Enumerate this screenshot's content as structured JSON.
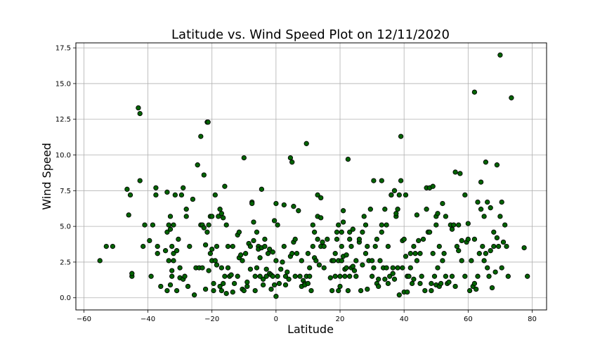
{
  "chart_data": {
    "type": "scatter",
    "title": "Latitude vs. Wind Speed Plot on 12/11/2020",
    "xlabel": "Latitude",
    "ylabel": "Wind Speed",
    "xlim": [
      -62.5,
      84.5
    ],
    "ylim": [
      -0.85,
      17.85
    ],
    "xticks": [
      -60,
      -40,
      -20,
      0,
      20,
      40,
      60,
      80
    ],
    "yticks": [
      0.0,
      2.5,
      5.0,
      7.5,
      10.0,
      12.5,
      15.0,
      17.5
    ],
    "xtick_labels": [
      "−60",
      "−40",
      "−20",
      "0",
      "20",
      "40",
      "60",
      "80"
    ],
    "ytick_labels": [
      "0.0",
      "2.5",
      "5.0",
      "7.5",
      "10.0",
      "12.5",
      "15.0",
      "17.5"
    ],
    "grid": true,
    "marker_color": "#006400",
    "marker_edge": "#000000",
    "points": [
      [
        -55,
        2.6
      ],
      [
        -53,
        3.6
      ],
      [
        -51,
        3.6
      ],
      [
        -46.5,
        7.6
      ],
      [
        -46,
        5.8
      ],
      [
        -45.5,
        7.2
      ],
      [
        -45,
        1.5
      ],
      [
        -45,
        1.7
      ],
      [
        -43,
        13.3
      ],
      [
        -42.5,
        12.9
      ],
      [
        -42.5,
        8.2
      ],
      [
        -41.5,
        3.6
      ],
      [
        -41,
        5.1
      ],
      [
        -39.5,
        4.0
      ],
      [
        -39,
        1.5
      ],
      [
        -38.5,
        5.1
      ],
      [
        -37.5,
        7.7
      ],
      [
        -37.5,
        7.2
      ],
      [
        -37,
        3.6
      ],
      [
        -37,
        3.1
      ],
      [
        -36,
        0.8
      ],
      [
        -34.5,
        3.3
      ],
      [
        -34,
        7.4
      ],
      [
        -34,
        4.6
      ],
      [
        -34,
        0.5
      ],
      [
        -33.5,
        5.1
      ],
      [
        -33.5,
        2.6
      ],
      [
        -33,
        5.7
      ],
      [
        -33,
        4.8
      ],
      [
        -33,
        0.9
      ],
      [
        -32.5,
        3.6
      ],
      [
        -32.5,
        1.5
      ],
      [
        -32.5,
        1.9
      ],
      [
        -32,
        5.1
      ],
      [
        -32,
        3.1
      ],
      [
        -32,
        2.6
      ],
      [
        -31.5,
        7.2
      ],
      [
        -31,
        3.3
      ],
      [
        -31,
        0.5
      ],
      [
        -30.5,
        4.1
      ],
      [
        -30,
        2.1
      ],
      [
        -30,
        1.4
      ],
      [
        -29.5,
        7.2
      ],
      [
        -29,
        7.7
      ],
      [
        -29,
        1.3
      ],
      [
        -28.5,
        1.5
      ],
      [
        -28,
        5.7
      ],
      [
        -28,
        6.2
      ],
      [
        -27.5,
        0.8
      ],
      [
        -27,
        3.6
      ],
      [
        -26,
        6.9
      ],
      [
        -25.5,
        0.2
      ],
      [
        -25,
        2.1
      ],
      [
        -24.5,
        9.3
      ],
      [
        -24,
        2.1
      ],
      [
        -23.5,
        11.3
      ],
      [
        -23.5,
        5.1
      ],
      [
        -23,
        5.1
      ],
      [
        -23,
        2.1
      ],
      [
        -22.5,
        4.9
      ],
      [
        -22.5,
        8.6
      ],
      [
        -22,
        0.6
      ],
      [
        -22,
        3.7
      ],
      [
        -21.5,
        4.6
      ],
      [
        -21.5,
        12.3
      ],
      [
        -21.2,
        12.3
      ],
      [
        -21,
        1.9
      ],
      [
        -21,
        5.1
      ],
      [
        -20.5,
        5.7
      ],
      [
        -20.5,
        3.1
      ],
      [
        -20,
        2.6
      ],
      [
        -20,
        5.7
      ],
      [
        -20,
        3.4
      ],
      [
        -19.5,
        0.5
      ],
      [
        -19.5,
        1.0
      ],
      [
        -19,
        2.6
      ],
      [
        -19,
        7.2
      ],
      [
        -18.5,
        3.6
      ],
      [
        -18.5,
        2.3
      ],
      [
        -18,
        5.7
      ],
      [
        -17.5,
        6.2
      ],
      [
        -17.5,
        0.8
      ],
      [
        -17,
        5.9
      ],
      [
        -17,
        0.5
      ],
      [
        -17,
        2.1
      ],
      [
        -16.5,
        5.6
      ],
      [
        -16.5,
        1.0
      ],
      [
        -16,
        7.8
      ],
      [
        -16,
        1.5
      ],
      [
        -15.5,
        5.1
      ],
      [
        -15.5,
        0.3
      ],
      [
        -15,
        3.6
      ],
      [
        -15,
        2.1
      ],
      [
        -14.5,
        1.5
      ],
      [
        -14,
        1.6
      ],
      [
        -13.5,
        3.6
      ],
      [
        -13.5,
        0.4
      ],
      [
        -13,
        1.0
      ],
      [
        -12,
        4.4
      ],
      [
        -12,
        1.5
      ],
      [
        -11.5,
        2.8
      ],
      [
        -11.5,
        4.6
      ],
      [
        -11,
        3.0
      ],
      [
        -10.5,
        0.6
      ],
      [
        -10.5,
        2.6
      ],
      [
        -10,
        9.8
      ],
      [
        -10,
        0.5
      ],
      [
        -9.5,
        3.1
      ],
      [
        -9,
        0.8
      ],
      [
        -9,
        1.1
      ],
      [
        -8.5,
        3.8
      ],
      [
        -8,
        3.6
      ],
      [
        -8,
        2.0
      ],
      [
        -7.5,
        6.7
      ],
      [
        -7.5,
        6.6
      ],
      [
        -7,
        5.3
      ],
      [
        -7,
        4.0
      ],
      [
        -6.5,
        0.5
      ],
      [
        -6.5,
        1.5
      ],
      [
        -6,
        4.6
      ],
      [
        -6,
        2.1
      ],
      [
        -5.5,
        3.6
      ],
      [
        -5.5,
        3.4
      ],
      [
        -5,
        1.5
      ],
      [
        -5,
        2.8
      ],
      [
        -4.5,
        7.6
      ],
      [
        -4.5,
        3.5
      ],
      [
        -4,
        1.3
      ],
      [
        -4,
        0.9
      ],
      [
        -3.5,
        3.6
      ],
      [
        -3.5,
        4.1
      ],
      [
        -3,
        1.5
      ],
      [
        -3,
        2.0
      ],
      [
        -2.5,
        3.1
      ],
      [
        -2,
        3.4
      ],
      [
        -2,
        1.7
      ],
      [
        -1.5,
        1.6
      ],
      [
        -1.5,
        0.6
      ],
      [
        -1,
        1.5
      ],
      [
        -1,
        3.2
      ],
      [
        -0.5,
        0.9
      ],
      [
        -0.5,
        5.4
      ],
      [
        0,
        0.1
      ],
      [
        0,
        6.6
      ],
      [
        0,
        2.6
      ],
      [
        0.5,
        1.5
      ],
      [
        0.5,
        5.1
      ],
      [
        1,
        1.0
      ],
      [
        1.5,
        2.0
      ],
      [
        2,
        2.5
      ],
      [
        2.5,
        6.5
      ],
      [
        2.5,
        3.6
      ],
      [
        3,
        0.9
      ],
      [
        3,
        1.5
      ],
      [
        3.5,
        1.8
      ],
      [
        4,
        1.3
      ],
      [
        4.5,
        9.8
      ],
      [
        4.5,
        2.9
      ],
      [
        5,
        3.1
      ],
      [
        5,
        9.5
      ],
      [
        5.5,
        3.9
      ],
      [
        5.5,
        6.4
      ],
      [
        6,
        4.1
      ],
      [
        6,
        1.5
      ],
      [
        6.5,
        3.1
      ],
      [
        7,
        6.1
      ],
      [
        7.5,
        1.5
      ],
      [
        8,
        0.8
      ],
      [
        8,
        2.6
      ],
      [
        8.5,
        1.2
      ],
      [
        9,
        1.0
      ],
      [
        9,
        0.9
      ],
      [
        9.5,
        10.8
      ],
      [
        9.5,
        1.5
      ],
      [
        10,
        3.1
      ],
      [
        10,
        1.0
      ],
      [
        10.5,
        2.1
      ],
      [
        10.5,
        1.5
      ],
      [
        11,
        0.5
      ],
      [
        11.5,
        5.1
      ],
      [
        11.5,
        3.6
      ],
      [
        12,
        2.8
      ],
      [
        12,
        4.6
      ],
      [
        12.5,
        2.6
      ],
      [
        13,
        4.1
      ],
      [
        13,
        5.7
      ],
      [
        13,
        7.2
      ],
      [
        13.5,
        2.3
      ],
      [
        14,
        5.6
      ],
      [
        14,
        3.6
      ],
      [
        14,
        7.0
      ],
      [
        14.5,
        3.9
      ],
      [
        15,
        3.6
      ],
      [
        15,
        2.1
      ],
      [
        16,
        4.1
      ],
      [
        17,
        1.4
      ],
      [
        17.5,
        2.6
      ],
      [
        17.5,
        0.5
      ],
      [
        18,
        2.6
      ],
      [
        18.5,
        1.5
      ],
      [
        18.5,
        3.1
      ],
      [
        19,
        4.1
      ],
      [
        19,
        4.6
      ],
      [
        19.5,
        5.1
      ],
      [
        19.5,
        2.6
      ],
      [
        19.5,
        0.5
      ],
      [
        20,
        1.5
      ],
      [
        20,
        0.8
      ],
      [
        20.5,
        2.6
      ],
      [
        20.5,
        4.6
      ],
      [
        20.5,
        3.6
      ],
      [
        21,
        6.1
      ],
      [
        21,
        5.3
      ],
      [
        21,
        2.9
      ],
      [
        21.5,
        2.0
      ],
      [
        21.5,
        1.5
      ],
      [
        22,
        3.0
      ],
      [
        22,
        2.1
      ],
      [
        22.5,
        9.7
      ],
      [
        22.5,
        0.5
      ],
      [
        23,
        4.1
      ],
      [
        23,
        4.6
      ],
      [
        23,
        1.5
      ],
      [
        23.5,
        3.6
      ],
      [
        23.5,
        2.1
      ],
      [
        24,
        4.8
      ],
      [
        24,
        2.2
      ],
      [
        24.5,
        1.9
      ],
      [
        25,
        1.5
      ],
      [
        25,
        2.6
      ],
      [
        26,
        3.9
      ],
      [
        26,
        4.1
      ],
      [
        26.5,
        0.5
      ],
      [
        27,
        2.3
      ],
      [
        27,
        4.6
      ],
      [
        27.5,
        5.7
      ],
      [
        28,
        5.1
      ],
      [
        28,
        3.1
      ],
      [
        28.5,
        3.6
      ],
      [
        28.5,
        0.6
      ],
      [
        29,
        2.6
      ],
      [
        29.5,
        6.2
      ],
      [
        30,
        2.6
      ],
      [
        30,
        1.5
      ],
      [
        30.5,
        8.2
      ],
      [
        30.5,
        2.1
      ],
      [
        31,
        3.6
      ],
      [
        31.5,
        4.1
      ],
      [
        31.5,
        1.0
      ],
      [
        32,
        1.3
      ],
      [
        32,
        0.8
      ],
      [
        32.5,
        2.6
      ],
      [
        33,
        5.1
      ],
      [
        33,
        8.2
      ],
      [
        33,
        4.6
      ],
      [
        33.5,
        2.1
      ],
      [
        34,
        1.3
      ],
      [
        34,
        6.2
      ],
      [
        34.5,
        5.1
      ],
      [
        34.5,
        2.1
      ],
      [
        35,
        1.0
      ],
      [
        35,
        3.6
      ],
      [
        35.5,
        1.5
      ],
      [
        36,
        7.2
      ],
      [
        36,
        7.2
      ],
      [
        36.5,
        2.1
      ],
      [
        36.5,
        1.7
      ],
      [
        37,
        7.5
      ],
      [
        37,
        1.3
      ],
      [
        37.5,
        5.7
      ],
      [
        37.5,
        5.9
      ],
      [
        38,
        6.2
      ],
      [
        38,
        2.1
      ],
      [
        38.5,
        7.2
      ],
      [
        38.5,
        0.2
      ],
      [
        39,
        8.2
      ],
      [
        39,
        11.3
      ],
      [
        39.5,
        4.0
      ],
      [
        39.5,
        2.1
      ],
      [
        40,
        4.1
      ],
      [
        40,
        0.4
      ],
      [
        40.5,
        7.2
      ],
      [
        40.5,
        2.9
      ],
      [
        41,
        0.4
      ],
      [
        41,
        1.5
      ],
      [
        41.5,
        1.5
      ],
      [
        42,
        2.1
      ],
      [
        42,
        3.1
      ],
      [
        42.5,
        1.0
      ],
      [
        43,
        3.6
      ],
      [
        43,
        1.3
      ],
      [
        43.5,
        3.1
      ],
      [
        44,
        5.8
      ],
      [
        44,
        2.6
      ],
      [
        44.5,
        4.0
      ],
      [
        45,
        3.1
      ],
      [
        45,
        1.0
      ],
      [
        45.5,
        1.5
      ],
      [
        46,
        4.1
      ],
      [
        46.5,
        0.5
      ],
      [
        47,
        6.2
      ],
      [
        47,
        7.7
      ],
      [
        47.5,
        4.6
      ],
      [
        48,
        4.6
      ],
      [
        48,
        7.7
      ],
      [
        48.5,
        1.0
      ],
      [
        48.5,
        0.5
      ],
      [
        49,
        7.8
      ],
      [
        49,
        3.1
      ],
      [
        49.5,
        1.5
      ],
      [
        50,
        5.1
      ],
      [
        50,
        5.7
      ],
      [
        50,
        0.9
      ],
      [
        50.5,
        5.9
      ],
      [
        50.5,
        2.1
      ],
      [
        51,
        3.6
      ],
      [
        51,
        0.8
      ],
      [
        51.5,
        1.0
      ],
      [
        52,
        6.6
      ],
      [
        52,
        2.6
      ],
      [
        52.5,
        3.1
      ],
      [
        53,
        5.7
      ],
      [
        53,
        1.5
      ],
      [
        53.5,
        1.0
      ],
      [
        54,
        1.1
      ],
      [
        54.5,
        5.1
      ],
      [
        55,
        1.5
      ],
      [
        55,
        4.8
      ],
      [
        55.5,
        5.1
      ],
      [
        56,
        8.8
      ],
      [
        56,
        0.8
      ],
      [
        56.5,
        3.6
      ],
      [
        57,
        3.3
      ],
      [
        57,
        5.1
      ],
      [
        57.5,
        8.7
      ],
      [
        58,
        4.0
      ],
      [
        58,
        2.6
      ],
      [
        59,
        7.2
      ],
      [
        59,
        1.5
      ],
      [
        59.5,
        3.9
      ],
      [
        60,
        5.2
      ],
      [
        60,
        4.1
      ],
      [
        60.5,
        0.5
      ],
      [
        61,
        2.6
      ],
      [
        61.5,
        0.8
      ],
      [
        62,
        14.4
      ],
      [
        62,
        4.1
      ],
      [
        62,
        1.0
      ],
      [
        62.5,
        0.6
      ],
      [
        63,
        6.7
      ],
      [
        63,
        1.5
      ],
      [
        63.5,
        3.1
      ],
      [
        64,
        6.2
      ],
      [
        64,
        8.1
      ],
      [
        64.5,
        3.6
      ],
      [
        65,
        2.6
      ],
      [
        65,
        5.7
      ],
      [
        65.5,
        9.5
      ],
      [
        65.5,
        3.1
      ],
      [
        66,
        6.7
      ],
      [
        66,
        2.1
      ],
      [
        66.5,
        1.5
      ],
      [
        67,
        6.3
      ],
      [
        67,
        3.3
      ],
      [
        67.5,
        0.7
      ],
      [
        68,
        4.6
      ],
      [
        68,
        3.6
      ],
      [
        68.5,
        1.8
      ],
      [
        69,
        9.3
      ],
      [
        69,
        4.2
      ],
      [
        69.5,
        3.6
      ],
      [
        70,
        17.0
      ],
      [
        70,
        5.7
      ],
      [
        70.5,
        6.7
      ],
      [
        70.5,
        2.1
      ],
      [
        71,
        3.9
      ],
      [
        71.5,
        5.1
      ],
      [
        72,
        3.6
      ],
      [
        72.5,
        1.5
      ],
      [
        73.5,
        14.0
      ],
      [
        77.5,
        3.5
      ],
      [
        78.5,
        1.5
      ]
    ]
  }
}
